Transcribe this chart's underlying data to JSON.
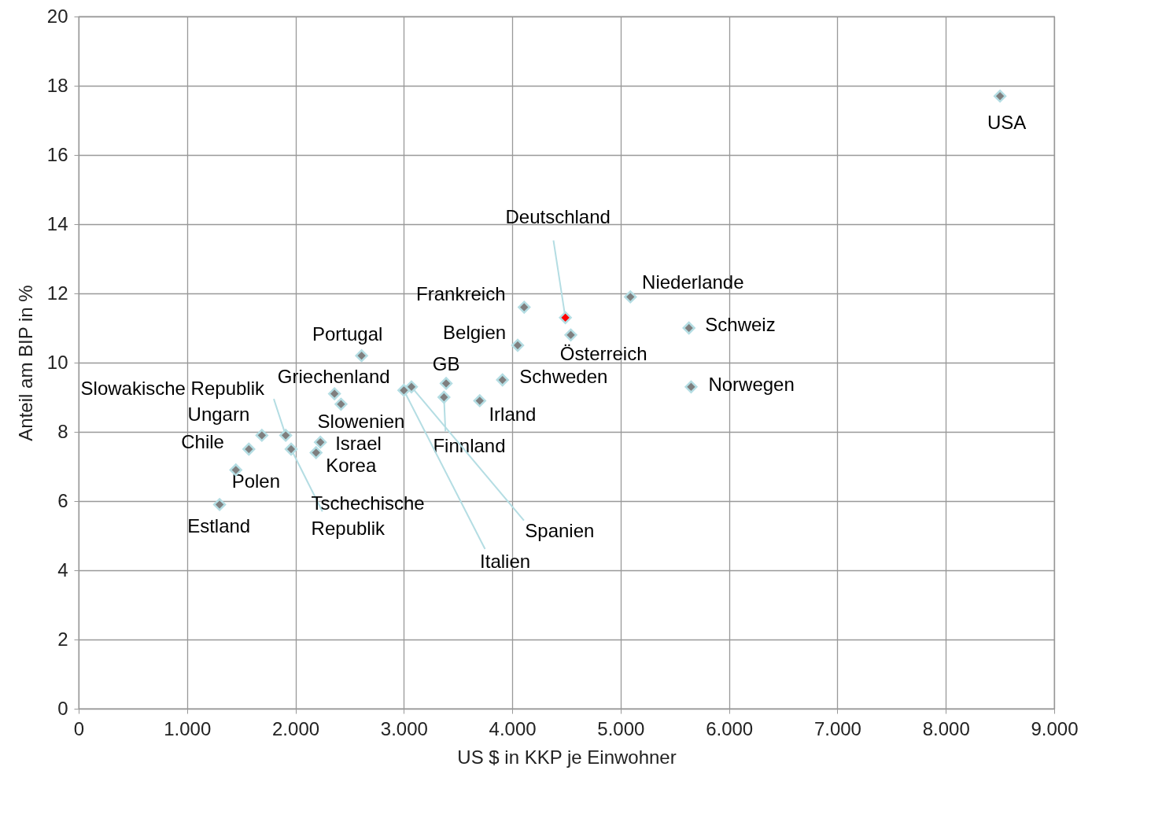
{
  "chart_data": {
    "type": "scatter",
    "xlabel": "US $ in KKP je Einwohner",
    "ylabel": "Anteil am BIP in %",
    "x": [
      8500,
      4490,
      4110,
      4540,
      5090,
      5630,
      5650,
      4050,
      3910,
      3700,
      3390,
      3370,
      3070,
      3000,
      2610,
      2360,
      2420,
      2230,
      2190,
      1910,
      1960,
      1690,
      1570,
      1450,
      1300
    ],
    "series": [
      {
        "colors": [
          "#7f7f7f",
          "#ff0000",
          "#7f7f7f",
          "#7f7f7f",
          "#7f7f7f",
          "#7f7f7f",
          "#7f7f7f",
          "#7f7f7f",
          "#7f7f7f",
          "#7f7f7f",
          "#7f7f7f",
          "#7f7f7f",
          "#7f7f7f",
          "#7f7f7f",
          "#7f7f7f",
          "#7f7f7f",
          "#7f7f7f",
          "#7f7f7f",
          "#7f7f7f",
          "#7f7f7f",
          "#7f7f7f",
          "#7f7f7f",
          "#7f7f7f",
          "#7f7f7f",
          "#7f7f7f"
        ],
        "values": [
          17.7,
          11.3,
          11.6,
          10.8,
          11.9,
          11.0,
          9.3,
          10.5,
          9.5,
          8.9,
          9.4,
          9.0,
          9.3,
          9.2,
          10.2,
          9.1,
          8.8,
          7.7,
          7.4,
          7.9,
          7.5,
          7.9,
          7.5,
          6.9,
          5.9
        ]
      }
    ],
    "annotations": [
      {
        "text": "USA",
        "x": 8500,
        "y": 17.7
      },
      {
        "text": "Deutschland",
        "x": 4490,
        "y": 11.3
      },
      {
        "text": "Frankreich",
        "x": 4110,
        "y": 11.6
      },
      {
        "text": "Österreich",
        "x": 4540,
        "y": 10.8
      },
      {
        "text": "Niederlande",
        "x": 5090,
        "y": 11.9
      },
      {
        "text": "Schweiz",
        "x": 5630,
        "y": 11.0
      },
      {
        "text": "Norwegen",
        "x": 5650,
        "y": 9.3
      },
      {
        "text": "Belgien",
        "x": 4050,
        "y": 10.5
      },
      {
        "text": "Schweden",
        "x": 3910,
        "y": 9.5
      },
      {
        "text": "Irland",
        "x": 3700,
        "y": 8.9
      },
      {
        "text": "GB",
        "x": 3390,
        "y": 9.4
      },
      {
        "text": "Finnland",
        "x": 3370,
        "y": 9.0
      },
      {
        "text": "Spanien",
        "x": 3070,
        "y": 9.3
      },
      {
        "text": "Italien",
        "x": 3000,
        "y": 9.2
      },
      {
        "text": "Portugal",
        "x": 2610,
        "y": 10.2
      },
      {
        "text": "Griechenland",
        "x": 2360,
        "y": 9.1
      },
      {
        "text": "Slowenien",
        "x": 2420,
        "y": 8.8
      },
      {
        "text": "Israel",
        "x": 2230,
        "y": 7.7
      },
      {
        "text": "Korea",
        "x": 2190,
        "y": 7.4
      },
      {
        "text": "Slowakische Republik",
        "x": 1910,
        "y": 7.9
      },
      {
        "text": "Tschechische Republik",
        "x": 1960,
        "y": 7.5
      },
      {
        "text": "Ungarn",
        "x": 1690,
        "y": 7.9
      },
      {
        "text": "Chile",
        "x": 1570,
        "y": 7.5
      },
      {
        "text": "Polen",
        "x": 1450,
        "y": 6.9
      },
      {
        "text": "Estland",
        "x": 1300,
        "y": 5.9
      }
    ],
    "xlim": [
      0,
      9000
    ],
    "ylim": [
      0,
      20
    ],
    "xticks": [
      0,
      {
        "value": 1000,
        "label": "1.000"
      },
      {
        "value": 2000,
        "label": "2.000"
      },
      {
        "value": 3000,
        "label": "3.000"
      },
      {
        "value": 4000,
        "label": "4.000"
      },
      {
        "value": 5000,
        "label": "5.000"
      },
      {
        "value": 6000,
        "label": "6.000"
      },
      {
        "value": 7000,
        "label": "7.000"
      },
      {
        "value": 8000,
        "label": "8.000"
      },
      {
        "value": 9000,
        "label": "9.000"
      }
    ],
    "yticks": [
      0,
      2,
      4,
      6,
      8,
      10,
      12,
      14,
      16,
      18,
      20
    ],
    "grid": true,
    "marker": "diamond"
  }
}
